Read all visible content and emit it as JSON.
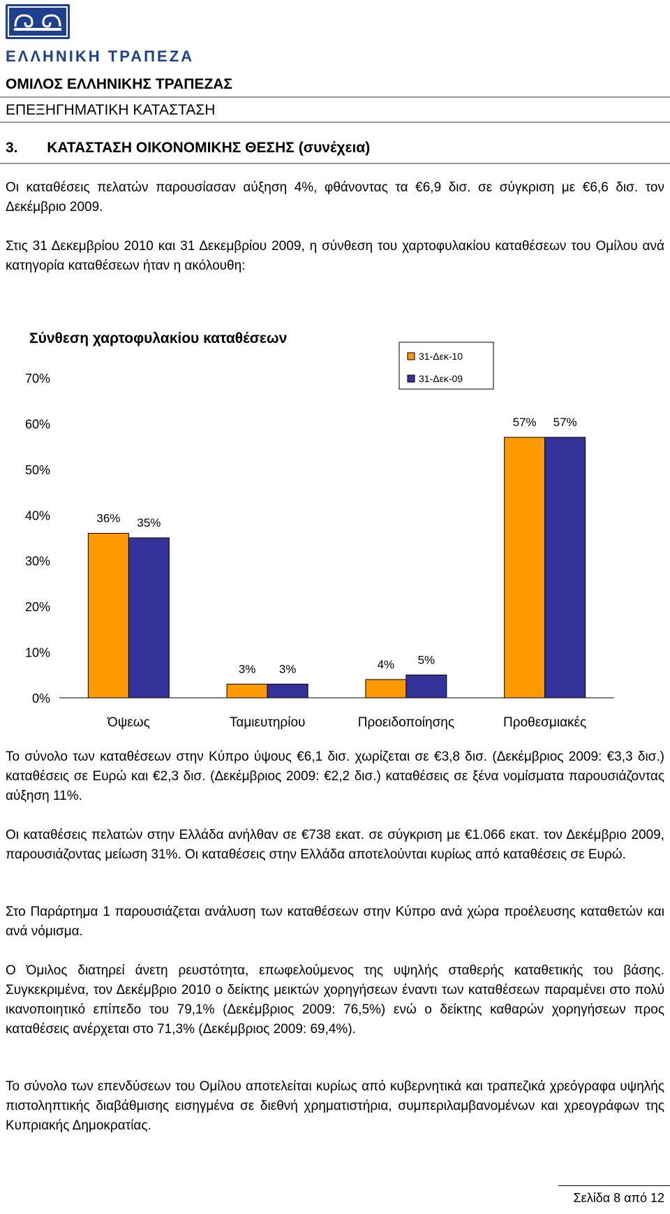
{
  "header": {
    "logo_text": "ΕΛΛΗΝΙΚΗ ΤΡΑΠΕΖΑ",
    "group_title": "ΟΜΙΛΟΣ ΕΛΛΗΝΙΚΗΣ ΤΡΑΠΕΖΑΣ",
    "report_title": "ΕΠΕΞΗΓΗΜΑΤΙΚΗ ΚΑΤΑΣΤΑΣΗ"
  },
  "section": {
    "number": "3.",
    "title": "ΚΑΤΑΣΤΑΣΗ ΟΙΚΟΝΟΜΙΚΗΣ ΘΕΣΗΣ (συνέχεια)"
  },
  "paragraphs_top": [
    "Οι καταθέσεις πελατών παρουσίασαν αύξηση 4%, φθάνοντας τα €6,9 δισ. σε σύγκριση με €6,6 δισ. τον Δεκέμβριο 2009.",
    "Στις 31 Δεκεμβρίου 2010 και 31 Δεκεμβρίου 2009, η σύνθεση του χαρτοφυλακίου καταθέσεων του Ομίλου ανά κατηγορία καταθέσεων ήταν η ακόλουθη:"
  ],
  "chart_data": {
    "type": "bar",
    "title": "Σύνθεση χαρτοφυλακίου καταθέσεων",
    "categories": [
      "Όψεως",
      "Ταμιευτηρίου",
      "Προειδοποίησης",
      "Προθεσμιακές"
    ],
    "series": [
      {
        "name": "31-Δεκ-10",
        "values": [
          36,
          3,
          4,
          57
        ],
        "labels": [
          "36%",
          "3%",
          "4%",
          "57%"
        ],
        "color": "#ff9900"
      },
      {
        "name": "31-Δεκ-09",
        "values": [
          35,
          3,
          5,
          57
        ],
        "labels": [
          "35%",
          "3%",
          "5%",
          "57%"
        ],
        "color": "#333399"
      }
    ],
    "ylim": [
      0,
      70
    ],
    "yticks": [
      "0%",
      "10%",
      "20%",
      "30%",
      "40%",
      "50%",
      "60%",
      "70%"
    ],
    "legend": "top-right"
  },
  "paragraphs_bottom": [
    "Το σύνολο των καταθέσεων στην Κύπρο ύψους €6,1 δισ. χωρίζεται σε €3,8 δισ. (Δεκέμβριος 2009: €3,3 δισ.) καταθέσεις σε Ευρώ και €2,3 δισ. (Δεκέμβριος 2009: €2,2 δισ.) καταθέσεις σε ξένα νομίσματα παρουσιάζοντας αύξηση 11%.",
    "Οι καταθέσεις πελατών στην Ελλάδα ανήλθαν σε €738 εκατ. σε σύγκριση με €1.066 εκατ. τον Δεκέμβριο 2009, παρουσιάζοντας μείωση 31%. Οι καταθέσεις στην Ελλάδα αποτελούνται κυρίως από καταθέσεις σε Ευρώ.",
    "Στο Παράρτημα 1 παρουσιάζεται ανάλυση των καταθέσεων στην Κύπρο ανά χώρα προέλευσης καταθετών και ανά νόμισμα.",
    "Ο Όμιλος διατηρεί άνετη ρευστότητα, επωφελούμενος της υψηλής σταθερής καταθετικής του βάσης. Συγκεκριμένα, τον Δεκέμβριο 2010 ο δείκτης μεικτών χορηγήσεων έναντι των καταθέσεων παραμένει στο πολύ ικανοποιητικό επίπεδο του 79,1% (Δεκέμβριος 2009: 76,5%) ενώ ο δείκτης καθαρών χορηγήσεων προς καταθέσεις ανέρχεται στο 71,3% (Δεκέμβριος 2009: 69,4%).",
    "Το σύνολο των επενδύσεων του Ομίλου αποτελείται κυρίως από κυβερνητικά και τραπεζικά χρεόγραφα υψηλής πιστοληπτικής διαβάθμισης εισηγμένα σε διεθνή χρηματιστήρια, συμπεριλαμβανομένων και χρεογράφων της Κυπριακής Δημοκρατίας."
  ],
  "footer": {
    "page": "Σελίδα 8 από 12"
  }
}
